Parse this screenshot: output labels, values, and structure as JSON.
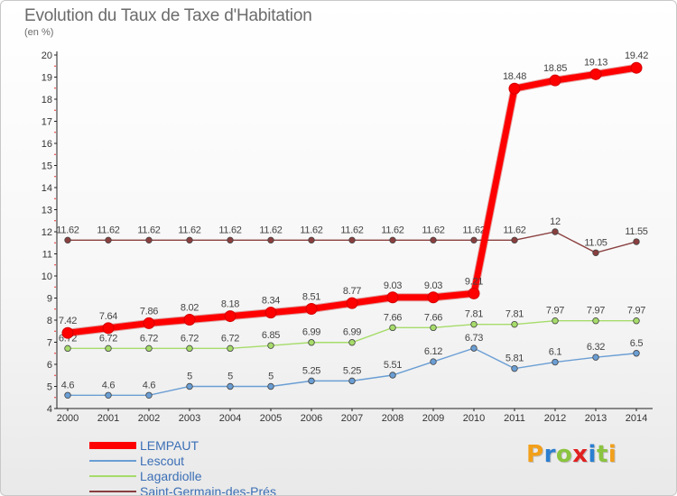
{
  "title": "Evolution du Taux de Taxe d'Habitation",
  "unit_label": "(en %)",
  "logo": {
    "text": "Proxiti",
    "letter_colors": [
      "#f29f1a",
      "#2b7fd1",
      "#8bc43f",
      "#e02020",
      "#2b7fd1",
      "#8bc43f",
      "#f29f1a"
    ]
  },
  "chart_data": {
    "type": "line",
    "title": "Evolution du Taux de Taxe d'Habitation",
    "ylabel": "(en %)",
    "xlabel": "",
    "x": [
      "2000",
      "2001",
      "2002",
      "2003",
      "2004",
      "2005",
      "2006",
      "2007",
      "2008",
      "2009",
      "2010",
      "2011",
      "2012",
      "2013",
      "2014"
    ],
    "ylim": [
      4,
      20
    ],
    "yticks": [
      "4",
      "5",
      "6",
      "7",
      "8",
      "9",
      "10",
      "11",
      "12",
      "13",
      "14",
      "15",
      "16",
      "17",
      "18",
      "19",
      "20"
    ],
    "grid": false,
    "legend_position": "bottom-left",
    "series": [
      {
        "name": "LEMPAUT",
        "color": "#ff0000",
        "emphasis": "thick",
        "values": [
          7.42,
          7.64,
          7.86,
          8.02,
          8.18,
          8.34,
          8.51,
          8.77,
          9.03,
          9.03,
          9.21,
          18.48,
          18.85,
          19.13,
          19.42
        ],
        "labels": [
          "7.42",
          "7.64",
          "7.86",
          "8.02",
          "8.18",
          "8.34",
          "8.51",
          "8.77",
          "9.03",
          "9.03",
          "9.21",
          "18.48",
          "18.85",
          "19.13",
          "19.42"
        ]
      },
      {
        "name": "Lescout",
        "color": "#6a9ed4",
        "values": [
          4.6,
          4.6,
          4.6,
          5,
          5,
          5,
          5.25,
          5.25,
          5.51,
          6.12,
          6.73,
          5.81,
          6.1,
          6.32,
          6.5
        ],
        "labels": [
          "4.6",
          "4.6",
          "4.6",
          "5",
          "5",
          "5",
          "5.25",
          "5.25",
          "5.51",
          "6.12",
          "6.73",
          "5.81",
          "6.1",
          "6.32",
          "6.5"
        ]
      },
      {
        "name": "Lagardiolle",
        "color": "#a6dc6a",
        "values": [
          6.72,
          6.72,
          6.72,
          6.72,
          6.72,
          6.85,
          6.99,
          6.99,
          7.66,
          7.66,
          7.81,
          7.81,
          7.97,
          7.97,
          7.97
        ],
        "labels": [
          "6.72",
          "6.72",
          "6.72",
          "6.72",
          "6.72",
          "6.85",
          "6.99",
          "6.99",
          "7.66",
          "7.66",
          "7.81",
          "7.81",
          "7.97",
          "7.97",
          "7.97"
        ]
      },
      {
        "name": "Saint-Germain-des-Prés",
        "color": "#8a3f3f",
        "values": [
          11.62,
          11.62,
          11.62,
          11.62,
          11.62,
          11.62,
          11.62,
          11.62,
          11.62,
          11.62,
          11.62,
          11.62,
          12,
          11.05,
          11.55
        ],
        "labels": [
          "11.62",
          "11.62",
          "11.62",
          "11.62",
          "11.62",
          "11.62",
          "11.62",
          "11.62",
          "11.62",
          "11.62",
          "11.62",
          "11.62",
          "12",
          "11.05",
          "11.55"
        ]
      }
    ]
  }
}
